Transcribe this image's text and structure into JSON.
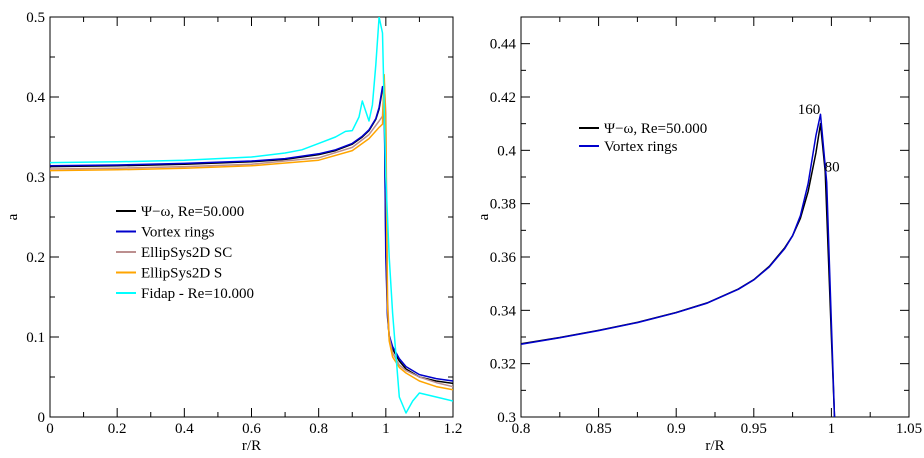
{
  "chart_data": [
    {
      "type": "line",
      "xlabel": "r/R",
      "ylabel": "a",
      "xlim": [
        0,
        1.2
      ],
      "ylim": [
        0,
        0.5
      ],
      "xticks": [
        "0",
        "0.2",
        "0.4",
        "0.6",
        "0.8",
        "1",
        "1.2"
      ],
      "yticks": [
        "0",
        "0.1",
        "0.2",
        "0.3",
        "0.4",
        "0.5"
      ],
      "legend": "center-left",
      "grid": false,
      "series": [
        {
          "name": "Ψ−ω, Re=50.000",
          "color": "#000000",
          "x": [
            0,
            0.2,
            0.4,
            0.6,
            0.7,
            0.8,
            0.85,
            0.9,
            0.93,
            0.95,
            0.97,
            0.98,
            0.99,
            0.995,
            1.0,
            1.005,
            1.01,
            1.02,
            1.04,
            1.06,
            1.1,
            1.15,
            1.2
          ],
          "y": [
            0.313,
            0.314,
            0.316,
            0.319,
            0.322,
            0.328,
            0.333,
            0.341,
            0.35,
            0.358,
            0.372,
            0.385,
            0.41,
            0.405,
            0.22,
            0.13,
            0.1,
            0.085,
            0.07,
            0.06,
            0.05,
            0.045,
            0.042
          ]
        },
        {
          "name": "Vortex rings",
          "color": "#0000cc",
          "x": [
            0,
            0.2,
            0.4,
            0.6,
            0.7,
            0.8,
            0.85,
            0.9,
            0.93,
            0.95,
            0.97,
            0.98,
            0.99,
            0.995,
            1.0,
            1.005,
            1.01,
            1.02,
            1.04,
            1.06,
            1.1,
            1.15,
            1.2
          ],
          "y": [
            0.314,
            0.315,
            0.317,
            0.32,
            0.323,
            0.329,
            0.334,
            0.342,
            0.351,
            0.359,
            0.373,
            0.387,
            0.413,
            0.4,
            0.2,
            0.125,
            0.102,
            0.088,
            0.073,
            0.063,
            0.053,
            0.048,
            0.045
          ]
        },
        {
          "name": "EllipSys2D SC",
          "color": "#bc8f8f",
          "x": [
            0,
            0.2,
            0.4,
            0.6,
            0.8,
            0.9,
            0.95,
            0.98,
            0.99,
            0.995,
            1.0,
            1.005,
            1.01,
            1.02,
            1.04,
            1.06,
            1.1,
            1.15,
            1.2
          ],
          "y": [
            0.31,
            0.311,
            0.313,
            0.316,
            0.324,
            0.337,
            0.353,
            0.37,
            0.376,
            0.42,
            0.38,
            0.15,
            0.1,
            0.08,
            0.065,
            0.058,
            0.05,
            0.043,
            0.038
          ]
        },
        {
          "name": "EllipSys2D S",
          "color": "#ffa500",
          "x": [
            0,
            0.2,
            0.4,
            0.6,
            0.8,
            0.9,
            0.95,
            0.98,
            0.99,
            0.995,
            1.0,
            1.005,
            1.01,
            1.02,
            1.04,
            1.06,
            1.1,
            1.15,
            1.2
          ],
          "y": [
            0.308,
            0.309,
            0.311,
            0.314,
            0.321,
            0.333,
            0.348,
            0.362,
            0.366,
            0.428,
            0.36,
            0.14,
            0.095,
            0.075,
            0.062,
            0.055,
            0.045,
            0.038,
            0.034
          ]
        },
        {
          "name": "Fidap - Re=10.000",
          "color": "#00ffff",
          "x": [
            0,
            0.2,
            0.4,
            0.6,
            0.7,
            0.75,
            0.8,
            0.85,
            0.88,
            0.9,
            0.92,
            0.93,
            0.95,
            0.96,
            0.97,
            0.98,
            0.99,
            1.0,
            1.01,
            1.02,
            1.04,
            1.06,
            1.08,
            1.1,
            1.15,
            1.2
          ],
          "y": [
            0.318,
            0.319,
            0.321,
            0.325,
            0.33,
            0.334,
            0.342,
            0.35,
            0.357,
            0.358,
            0.375,
            0.395,
            0.37,
            0.39,
            0.44,
            0.5,
            0.48,
            0.3,
            0.2,
            0.13,
            0.025,
            0.005,
            0.02,
            0.03,
            0.025,
            0.02
          ]
        }
      ]
    },
    {
      "type": "line",
      "xlabel": "r/R",
      "ylabel": "a",
      "xlim": [
        0.8,
        1.05
      ],
      "ylim": [
        0.3,
        0.45
      ],
      "xticks": [
        "0.8",
        "0.85",
        "0.9",
        "0.95",
        "1",
        "1.05"
      ],
      "yticks": [
        "0.3",
        "0.32",
        "0.34",
        "0.36",
        "0.38",
        "0.4",
        "0.42",
        "0.44"
      ],
      "legend": "top-left",
      "grid": false,
      "annotations": [
        {
          "text": "160",
          "x": 0.979,
          "y": 0.4155,
          "color": "#000000"
        },
        {
          "text": "80",
          "x": 0.995,
          "y": 0.394,
          "color": "#0000cc"
        }
      ],
      "series": [
        {
          "name": "Ψ−ω, Re=50.000",
          "color": "#000000",
          "x": [
            0.8,
            0.825,
            0.85,
            0.875,
            0.9,
            0.92,
            0.94,
            0.95,
            0.96,
            0.97,
            0.975,
            0.98,
            0.985,
            0.99,
            0.993,
            0.996,
            1.0,
            1.002
          ],
          "y": [
            0.3275,
            0.3298,
            0.3325,
            0.3355,
            0.3392,
            0.3428,
            0.348,
            0.3515,
            0.3565,
            0.3635,
            0.368,
            0.3745,
            0.3845,
            0.399,
            0.41,
            0.392,
            0.33,
            0.3
          ]
        },
        {
          "name": "Vortex rings",
          "color": "#0000cc",
          "x": [
            0.8,
            0.825,
            0.85,
            0.875,
            0.9,
            0.92,
            0.94,
            0.95,
            0.96,
            0.97,
            0.975,
            0.98,
            0.985,
            0.99,
            0.993,
            0.997,
            1.0,
            1.002
          ],
          "y": [
            0.3273,
            0.3297,
            0.3324,
            0.3354,
            0.3391,
            0.3427,
            0.3479,
            0.3514,
            0.3563,
            0.3632,
            0.368,
            0.3755,
            0.3875,
            0.4055,
            0.4135,
            0.388,
            0.335,
            0.3
          ]
        }
      ]
    }
  ]
}
